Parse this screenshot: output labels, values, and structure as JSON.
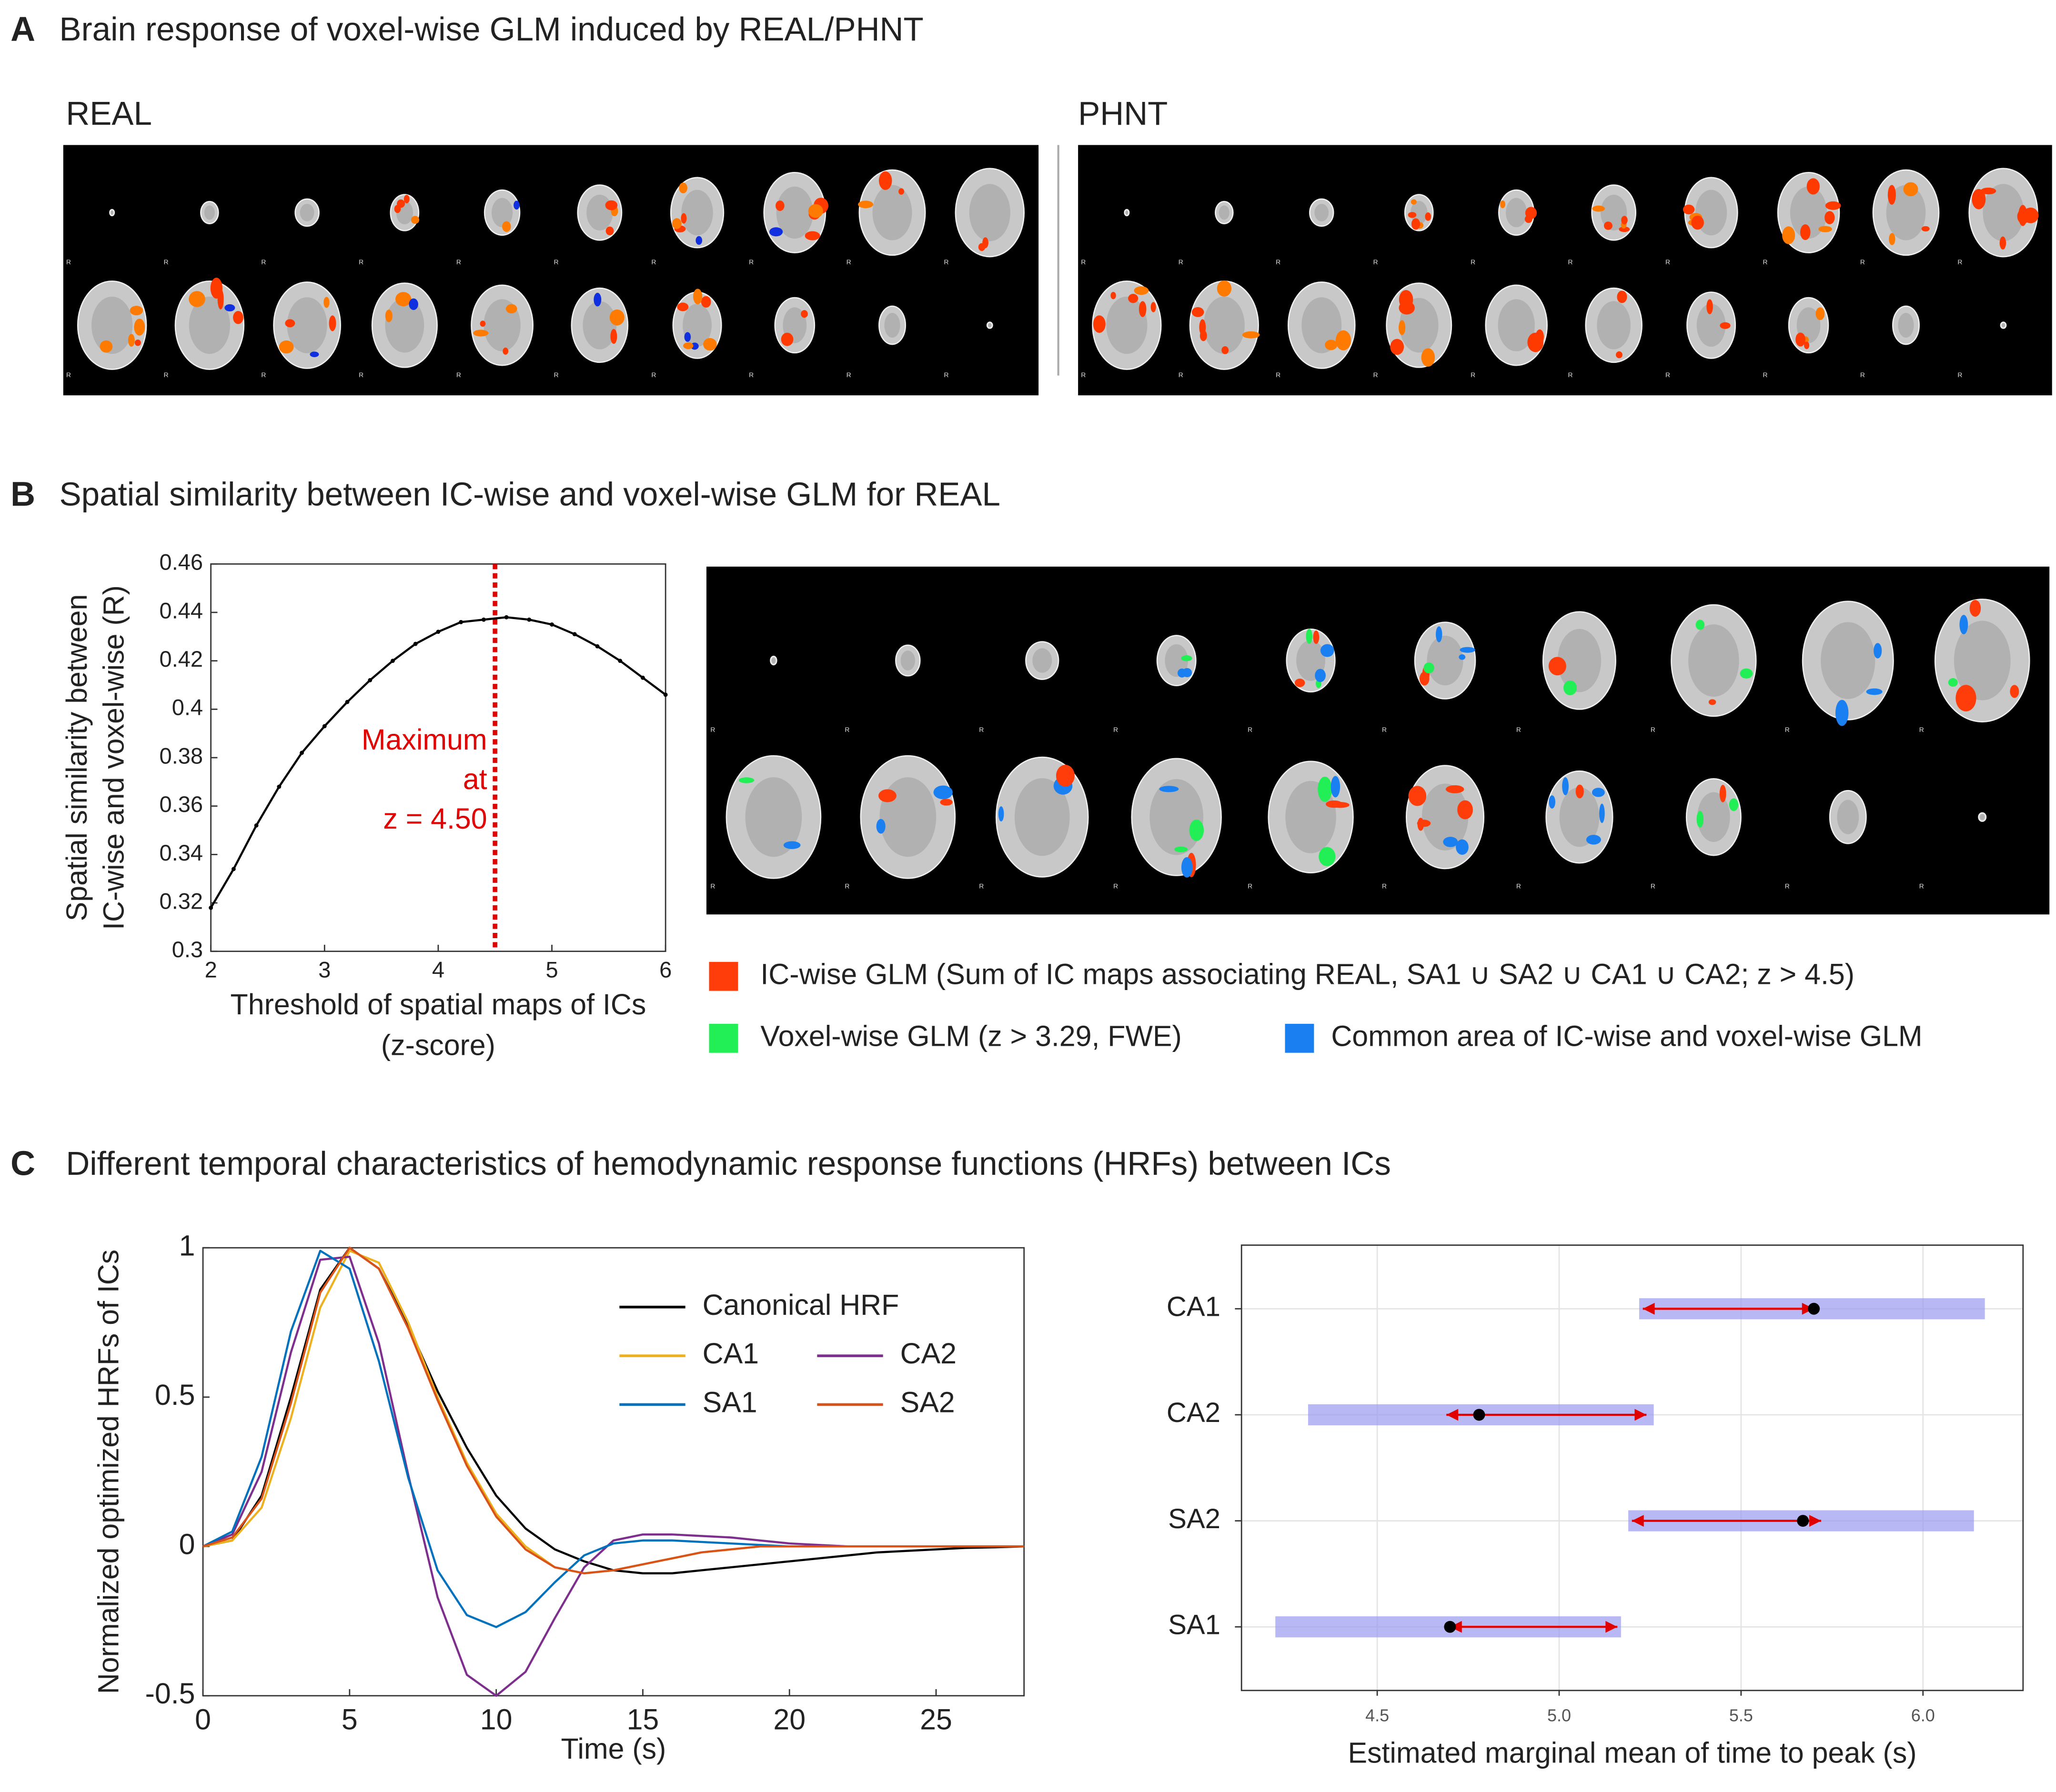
{
  "panels": [
    {
      "letter": "A",
      "title": "Brain response of voxel-wise GLM induced by REAL/PHNT",
      "labels": [
        "REAL",
        "PHNT"
      ],
      "orientation_label": "R"
    },
    {
      "letter": "B",
      "title": "Spatial similarity between IC-wise and voxel-wise GLM for REAL",
      "legend": [
        "IC-wise GLM (Sum of IC maps associating REAL, SA1 ∪ SA2 ∪ CA1 ∪ CA2; z > 4.5)",
        "Voxel-wise GLM (z > 3.29, FWE)",
        "Common area of IC-wise and voxel-wise GLM"
      ],
      "legend_colors": [
        "#ff3d0a",
        "#22ee55",
        "#1a7ff0"
      ]
    },
    {
      "letter": "C",
      "title": "Different temporal characteristics of hemodynamic response functions (HRFs) between ICs"
    }
  ],
  "chart_data": [
    {
      "type": "line",
      "ylabel": [
        "Spatial similarity between",
        "IC-wise and voxel-wise (R)"
      ],
      "xlabel": [
        "Threshold of spatial maps of ICs",
        "(z-score)"
      ],
      "x": [
        2,
        2.2,
        2.4,
        2.6,
        2.8,
        3,
        3.2,
        3.4,
        3.6,
        3.8,
        4,
        4.2,
        4.4,
        4.6,
        4.8,
        5,
        5.2,
        5.4,
        5.6,
        5.8,
        6
      ],
      "series": [
        {
          "color": "#000000",
          "values": [
            0.318,
            0.334,
            0.352,
            0.368,
            0.382,
            0.393,
            0.403,
            0.412,
            0.42,
            0.427,
            0.432,
            0.436,
            0.437,
            0.438,
            0.437,
            0.435,
            0.431,
            0.426,
            0.42,
            0.413,
            0.406
          ]
        }
      ],
      "markers": true,
      "xlim": [
        2,
        6
      ],
      "xticks": [
        2,
        3,
        4,
        5,
        6
      ],
      "ylim": [
        0.3,
        0.46
      ],
      "yticks": [
        0.3,
        0.32,
        0.34,
        0.36,
        0.38,
        0.4,
        0.42,
        0.44,
        0.46
      ],
      "vline": 4.5,
      "vline_color": "#e00000",
      "annotation": [
        "Maximum",
        "at",
        "z = 4.50"
      ],
      "grid": false
    },
    {
      "type": "line",
      "ylabel": [
        "Normalized optimized HRFs of ICs"
      ],
      "xlabel": [
        "Time (s)"
      ],
      "x": [
        0,
        1,
        2,
        3,
        4,
        5,
        6,
        7,
        8,
        9,
        10,
        11,
        12,
        13,
        14,
        15,
        16,
        17,
        18,
        19,
        20,
        21,
        22,
        23,
        24,
        25,
        26,
        27,
        28
      ],
      "series": [
        {
          "name": "Canonical HRF",
          "color": "#000000",
          "values": [
            0,
            0.02,
            0.17,
            0.5,
            0.86,
            1,
            0.93,
            0.74,
            0.52,
            0.33,
            0.17,
            0.06,
            -0.01,
            -0.05,
            -0.08,
            -0.09,
            -0.09,
            -0.08,
            -0.07,
            -0.06,
            -0.05,
            -0.04,
            -0.03,
            -0.02,
            -0.015,
            -0.01,
            -0.005,
            -0.003,
            0
          ]
        },
        {
          "name": "CA1",
          "color": "#edb120",
          "values": [
            0,
            0.02,
            0.13,
            0.43,
            0.8,
            0.99,
            0.95,
            0.75,
            0.5,
            0.28,
            0.11,
            0,
            -0.07,
            -0.09,
            -0.08,
            -0.06,
            -0.04,
            -0.02,
            -0.01,
            0,
            0,
            0,
            0,
            0,
            0,
            0,
            0,
            0,
            0
          ]
        },
        {
          "name": "CA2",
          "color": "#7e2f8e",
          "values": [
            0,
            0.04,
            0.25,
            0.65,
            0.96,
            0.97,
            0.68,
            0.24,
            -0.17,
            -0.43,
            -0.5,
            -0.42,
            -0.24,
            -0.07,
            0.02,
            0.04,
            0.04,
            0.035,
            0.03,
            0.02,
            0.01,
            0.005,
            0,
            0,
            0,
            0,
            0,
            0,
            0
          ]
        },
        {
          "name": "SA1",
          "color": "#0072bd",
          "values": [
            0,
            0.05,
            0.3,
            0.72,
            0.99,
            0.93,
            0.62,
            0.23,
            -0.08,
            -0.23,
            -0.27,
            -0.22,
            -0.12,
            -0.03,
            0.01,
            0.02,
            0.02,
            0.015,
            0.01,
            0.005,
            0,
            0,
            0,
            0,
            0,
            0,
            0,
            0,
            0
          ]
        },
        {
          "name": "SA2",
          "color": "#d95319",
          "values": [
            0,
            0.03,
            0.16,
            0.48,
            0.85,
            1,
            0.93,
            0.73,
            0.49,
            0.27,
            0.1,
            -0.01,
            -0.07,
            -0.09,
            -0.08,
            -0.06,
            -0.04,
            -0.02,
            -0.01,
            0,
            0,
            0,
            0,
            0,
            0,
            0,
            0,
            0,
            0
          ]
        }
      ],
      "markers": false,
      "legend": "upper right",
      "xlim": [
        0,
        28
      ],
      "xticks": [
        0,
        5,
        10,
        15,
        20,
        25
      ],
      "ylim": [
        -0.5,
        1
      ],
      "yticks": [
        -0.5,
        0,
        0.5,
        1
      ],
      "grid": false
    },
    {
      "type": "forest",
      "xlabel": [
        "Estimated marginal mean of time to peak (s)"
      ],
      "categories": [
        "CA1",
        "CA2",
        "SA2",
        "SA1"
      ],
      "values": [
        5.7,
        4.78,
        5.67,
        4.7
      ],
      "ci_lower": [
        5.22,
        4.31,
        5.19,
        4.22
      ],
      "ci_upper": [
        6.17,
        5.26,
        6.14,
        5.17
      ],
      "arrow_lower": [
        5.23,
        4.69,
        5.2,
        4.7
      ],
      "arrow_upper": [
        5.7,
        5.24,
        5.72,
        5.16
      ],
      "band_color": "#9a9af0",
      "arrow_color": "#e00000",
      "point_color": "#000000",
      "xlim": [
        4.127,
        6.275
      ],
      "xticks": [
        4.5,
        {
          "value": 5,
          "label": "5.0"
        },
        5.5,
        {
          "value": 6,
          "label": "6.0"
        }
      ],
      "grid": true
    }
  ]
}
